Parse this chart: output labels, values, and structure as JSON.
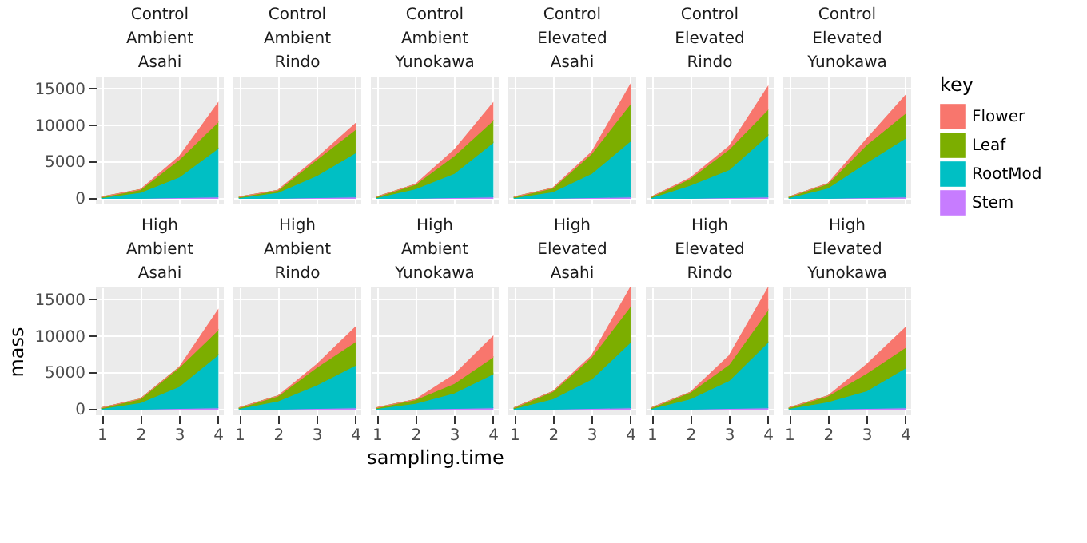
{
  "chart_data": [
    {
      "type": "area",
      "stacked": true,
      "title": "Control\nAmbient\nAsahi",
      "legend": "right",
      "legend_title": "key",
      "grid": true,
      "tick_labels": "y",
      "x": [
        1,
        2,
        3,
        4
      ],
      "xlim": [
        0.85,
        4.15
      ],
      "xticks": [
        1,
        2,
        3,
        4
      ],
      "ylim": [
        -830,
        16600
      ],
      "yticks": [
        0,
        5000,
        10000,
        15000
      ],
      "series": [
        {
          "name": "Stem",
          "color": "#c77cff",
          "values": [
            0,
            0,
            100,
            200
          ]
        },
        {
          "name": "RootMod",
          "color": "#00bfc4",
          "values": [
            100,
            800,
            2800,
            6600
          ]
        },
        {
          "name": "Leaf",
          "color": "#7cae00",
          "values": [
            100,
            400,
            2400,
            3600
          ]
        },
        {
          "name": "Flower",
          "color": "#f8766d",
          "values": [
            0,
            0,
            400,
            2600
          ]
        }
      ]
    },
    {
      "type": "area",
      "stacked": true,
      "title": "Control\nAmbient\nRindo",
      "grid": true,
      "tick_labels": false,
      "x": [
        1,
        2,
        3,
        4
      ],
      "xlim": [
        0.85,
        4.15
      ],
      "xticks": [
        1,
        2,
        3,
        4
      ],
      "ylim": [
        -830,
        16600
      ],
      "yticks": [
        0,
        5000,
        10000,
        15000
      ],
      "series": [
        {
          "name": "Stem",
          "color": "#c77cff",
          "values": [
            0,
            0,
            100,
            200
          ]
        },
        {
          "name": "RootMod",
          "color": "#00bfc4",
          "values": [
            100,
            800,
            3000,
            6000
          ]
        },
        {
          "name": "Leaf",
          "color": "#7cae00",
          "values": [
            100,
            300,
            2200,
            3200
          ]
        },
        {
          "name": "Flower",
          "color": "#f8766d",
          "values": [
            0,
            0,
            200,
            800
          ]
        }
      ]
    },
    {
      "type": "area",
      "stacked": true,
      "title": "Control\nAmbient\nYunokawa",
      "grid": true,
      "tick_labels": false,
      "x": [
        1,
        2,
        3,
        4
      ],
      "xlim": [
        0.85,
        4.15
      ],
      "xticks": [
        1,
        2,
        3,
        4
      ],
      "ylim": [
        -830,
        16600
      ],
      "yticks": [
        0,
        5000,
        10000,
        15000
      ],
      "series": [
        {
          "name": "Stem",
          "color": "#c77cff",
          "values": [
            0,
            0,
            100,
            200
          ]
        },
        {
          "name": "RootMod",
          "color": "#00bfc4",
          "values": [
            100,
            1300,
            3300,
            7400
          ]
        },
        {
          "name": "Leaf",
          "color": "#7cae00",
          "values": [
            100,
            600,
            2400,
            3000
          ]
        },
        {
          "name": "Flower",
          "color": "#f8766d",
          "values": [
            0,
            0,
            800,
            2400
          ]
        }
      ]
    },
    {
      "type": "area",
      "stacked": true,
      "title": "Control\nElevated\nAsahi",
      "grid": true,
      "tick_labels": false,
      "x": [
        1,
        2,
        3,
        4
      ],
      "xlim": [
        0.85,
        4.15
      ],
      "xticks": [
        1,
        2,
        3,
        4
      ],
      "ylim": [
        -830,
        16600
      ],
      "yticks": [
        0,
        5000,
        10000,
        15000
      ],
      "series": [
        {
          "name": "Stem",
          "color": "#c77cff",
          "values": [
            0,
            0,
            100,
            200
          ]
        },
        {
          "name": "RootMod",
          "color": "#00bfc4",
          "values": [
            100,
            900,
            3300,
            7600
          ]
        },
        {
          "name": "Leaf",
          "color": "#7cae00",
          "values": [
            100,
            500,
            2700,
            5100
          ]
        },
        {
          "name": "Flower",
          "color": "#f8766d",
          "values": [
            0,
            0,
            200,
            2600
          ]
        }
      ]
    },
    {
      "type": "area",
      "stacked": true,
      "title": "Control\nElevated\nRindo",
      "grid": true,
      "tick_labels": false,
      "x": [
        1,
        2,
        3,
        4
      ],
      "xlim": [
        0.85,
        4.15
      ],
      "xticks": [
        1,
        2,
        3,
        4
      ],
      "ylim": [
        -830,
        16600
      ],
      "yticks": [
        0,
        5000,
        10000,
        15000
      ],
      "series": [
        {
          "name": "Stem",
          "color": "#c77cff",
          "values": [
            0,
            0,
            100,
            200
          ]
        },
        {
          "name": "RootMod",
          "color": "#00bfc4",
          "values": [
            100,
            1800,
            3800,
            8400
          ]
        },
        {
          "name": "Leaf",
          "color": "#7cae00",
          "values": [
            100,
            900,
            2800,
            3500
          ]
        },
        {
          "name": "Flower",
          "color": "#f8766d",
          "values": [
            0,
            100,
            400,
            3100
          ]
        }
      ]
    },
    {
      "type": "area",
      "stacked": true,
      "title": "Control\nElevated\nYunokawa",
      "grid": true,
      "tick_labels": false,
      "x": [
        1,
        2,
        3,
        4
      ],
      "xlim": [
        0.85,
        4.15
      ],
      "xticks": [
        1,
        2,
        3,
        4
      ],
      "ylim": [
        -830,
        16600
      ],
      "yticks": [
        0,
        5000,
        10000,
        15000
      ],
      "series": [
        {
          "name": "Stem",
          "color": "#c77cff",
          "values": [
            0,
            0,
            100,
            200
          ]
        },
        {
          "name": "RootMod",
          "color": "#00bfc4",
          "values": [
            100,
            1400,
            4800,
            8000
          ]
        },
        {
          "name": "Leaf",
          "color": "#7cae00",
          "values": [
            100,
            600,
            2400,
            3400
          ]
        },
        {
          "name": "Flower",
          "color": "#f8766d",
          "values": [
            0,
            0,
            800,
            2400
          ]
        }
      ]
    },
    {
      "type": "area",
      "stacked": true,
      "title": "High\nAmbient\nAsahi",
      "ylabel": "mass",
      "grid": true,
      "x": [
        1,
        2,
        3,
        4
      ],
      "xlim": [
        0.85,
        4.15
      ],
      "xticks": [
        1,
        2,
        3,
        4
      ],
      "ylim": [
        -830,
        16600
      ],
      "yticks": [
        0,
        5000,
        10000,
        15000
      ],
      "series": [
        {
          "name": "Stem",
          "color": "#c77cff",
          "values": [
            0,
            0,
            100,
            200
          ]
        },
        {
          "name": "RootMod",
          "color": "#00bfc4",
          "values": [
            100,
            900,
            3000,
            7200
          ]
        },
        {
          "name": "Leaf",
          "color": "#7cae00",
          "values": [
            100,
            500,
            2600,
            3400
          ]
        },
        {
          "name": "Flower",
          "color": "#f8766d",
          "values": [
            0,
            0,
            0,
            2700
          ]
        }
      ]
    },
    {
      "type": "area",
      "stacked": true,
      "title": "High\nAmbient\nRindo",
      "grid": true,
      "tick_labels": "x",
      "x": [
        1,
        2,
        3,
        4
      ],
      "xlim": [
        0.85,
        4.15
      ],
      "xticks": [
        1,
        2,
        3,
        4
      ],
      "ylim": [
        -830,
        16600
      ],
      "yticks": [
        0,
        5000,
        10000,
        15000
      ],
      "series": [
        {
          "name": "Stem",
          "color": "#c77cff",
          "values": [
            0,
            0,
            100,
            200
          ]
        },
        {
          "name": "RootMod",
          "color": "#00bfc4",
          "values": [
            100,
            1100,
            3200,
            5800
          ]
        },
        {
          "name": "Leaf",
          "color": "#7cae00",
          "values": [
            100,
            700,
            2400,
            3200
          ]
        },
        {
          "name": "Flower",
          "color": "#f8766d",
          "values": [
            0,
            0,
            400,
            2000
          ]
        }
      ]
    },
    {
      "type": "area",
      "stacked": true,
      "title": "High\nAmbient\nYunokawa",
      "xlabel": "sampling.time",
      "grid": true,
      "tick_labels": "x",
      "x": [
        1,
        2,
        3,
        4
      ],
      "xlim": [
        0.85,
        4.15
      ],
      "xticks": [
        1,
        2,
        3,
        4
      ],
      "ylim": [
        -830,
        16600
      ],
      "yticks": [
        0,
        5000,
        10000,
        15000
      ],
      "series": [
        {
          "name": "Stem",
          "color": "#c77cff",
          "values": [
            0,
            0,
            100,
            200
          ]
        },
        {
          "name": "RootMod",
          "color": "#00bfc4",
          "values": [
            100,
            800,
            2100,
            4600
          ]
        },
        {
          "name": "Leaf",
          "color": "#7cae00",
          "values": [
            100,
            500,
            1300,
            2300
          ]
        },
        {
          "name": "Flower",
          "color": "#f8766d",
          "values": [
            0,
            0,
            1200,
            2800
          ]
        }
      ]
    },
    {
      "type": "area",
      "stacked": true,
      "title": "High\nElevated\nAsahi",
      "grid": true,
      "tick_labels": "x",
      "x": [
        1,
        2,
        3,
        4
      ],
      "xlim": [
        0.85,
        4.15
      ],
      "xticks": [
        1,
        2,
        3,
        4
      ],
      "ylim": [
        -830,
        16600
      ],
      "yticks": [
        0,
        5000,
        10000,
        15000
      ],
      "series": [
        {
          "name": "Stem",
          "color": "#c77cff",
          "values": [
            0,
            0,
            100,
            200
          ]
        },
        {
          "name": "RootMod",
          "color": "#00bfc4",
          "values": [
            100,
            1400,
            4000,
            8900
          ]
        },
        {
          "name": "Leaf",
          "color": "#7cae00",
          "values": [
            100,
            1000,
            3000,
            4900
          ]
        },
        {
          "name": "Flower",
          "color": "#f8766d",
          "values": [
            0,
            0,
            200,
            2600
          ]
        }
      ]
    },
    {
      "type": "area",
      "stacked": true,
      "title": "High\nElevated\nRindo",
      "grid": true,
      "tick_labels": "x",
      "x": [
        1,
        2,
        3,
        4
      ],
      "xlim": [
        0.85,
        4.15
      ],
      "xticks": [
        1,
        2,
        3,
        4
      ],
      "ylim": [
        -830,
        16600
      ],
      "yticks": [
        0,
        5000,
        10000,
        15000
      ],
      "series": [
        {
          "name": "Stem",
          "color": "#c77cff",
          "values": [
            0,
            0,
            100,
            200
          ]
        },
        {
          "name": "RootMod",
          "color": "#00bfc4",
          "values": [
            100,
            1400,
            3800,
            8900
          ]
        },
        {
          "name": "Leaf",
          "color": "#7cae00",
          "values": [
            100,
            900,
            2200,
            4400
          ]
        },
        {
          "name": "Flower",
          "color": "#f8766d",
          "values": [
            0,
            0,
            1200,
            3000
          ]
        }
      ]
    },
    {
      "type": "area",
      "stacked": true,
      "title": "High\nElevated\nYunokawa",
      "grid": true,
      "tick_labels": "x",
      "x": [
        1,
        2,
        3,
        4
      ],
      "xlim": [
        0.85,
        4.15
      ],
      "xticks": [
        1,
        2,
        3,
        4
      ],
      "ylim": [
        -830,
        16600
      ],
      "yticks": [
        0,
        5000,
        10000,
        15000
      ],
      "series": [
        {
          "name": "Stem",
          "color": "#c77cff",
          "values": [
            0,
            0,
            100,
            200
          ]
        },
        {
          "name": "RootMod",
          "color": "#00bfc4",
          "values": [
            100,
            1000,
            2400,
            5400
          ]
        },
        {
          "name": "Leaf",
          "color": "#7cae00",
          "values": [
            100,
            800,
            2400,
            2800
          ]
        },
        {
          "name": "Flower",
          "color": "#f8766d",
          "values": [
            0,
            0,
            1200,
            2700
          ]
        }
      ]
    }
  ]
}
